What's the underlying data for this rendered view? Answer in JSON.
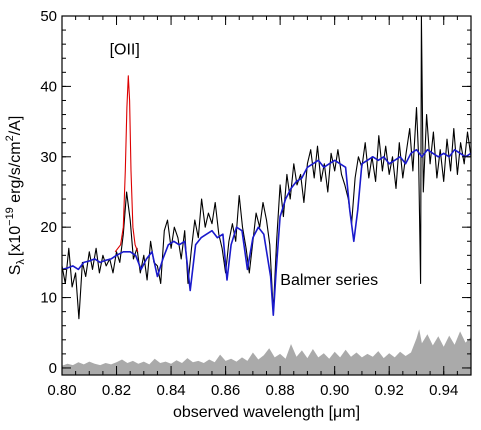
{
  "chart_data": {
    "type": "line",
    "title": "",
    "xlabel": "observed wavelength [μm]",
    "ylabel": {
      "main": "S",
      "sub": "λ",
      "unit_prefix": "[x10",
      "exp": "−19",
      "unit_mid": " erg/s/cm",
      "exp2": "2",
      "unit_suffix": "/A]"
    },
    "xlim": [
      0.8,
      0.95
    ],
    "ylim": [
      -1,
      50
    ],
    "xticks": [
      "0.80",
      "0.82",
      "0.84",
      "0.86",
      "0.88",
      "0.90",
      "0.92",
      "0.94"
    ],
    "xtick_values": [
      0.8,
      0.82,
      0.84,
      0.86,
      0.88,
      0.9,
      0.92,
      0.94
    ],
    "yticks": [
      "0",
      "10",
      "20",
      "30",
      "40",
      "50"
    ],
    "ytick_values": [
      0,
      10,
      20,
      30,
      40,
      50
    ],
    "grid": false,
    "annotations": [
      {
        "text": "[OII]",
        "x": 0.823,
        "y": 44.5
      },
      {
        "text": "Balmer series",
        "x": 0.898,
        "y": 11.8
      }
    ],
    "series": [
      {
        "color": "#000000",
        "style": "line",
        "points": [
          [
            0.8,
            14.5
          ],
          [
            0.8012,
            12.0
          ],
          [
            0.8025,
            17.0
          ],
          [
            0.8037,
            11.5
          ],
          [
            0.805,
            13.5
          ],
          [
            0.8062,
            7.0
          ],
          [
            0.8075,
            15.0
          ],
          [
            0.8087,
            13.0
          ],
          [
            0.81,
            16.5
          ],
          [
            0.8112,
            14.0
          ],
          [
            0.8125,
            17.0
          ],
          [
            0.8137,
            13.5
          ],
          [
            0.815,
            16.0
          ],
          [
            0.8162,
            14.5
          ],
          [
            0.8175,
            15.5
          ],
          [
            0.8187,
            13.5
          ],
          [
            0.82,
            16.5
          ],
          [
            0.8212,
            15.0
          ],
          [
            0.8225,
            19.0
          ],
          [
            0.8237,
            25.0
          ],
          [
            0.825,
            21.0
          ],
          [
            0.8262,
            15.5
          ],
          [
            0.8275,
            17.0
          ],
          [
            0.8287,
            13.5
          ],
          [
            0.83,
            16.0
          ],
          [
            0.8312,
            12.5
          ],
          [
            0.8325,
            18.0
          ],
          [
            0.8337,
            15.0
          ],
          [
            0.835,
            14.5
          ],
          [
            0.8362,
            12.0
          ],
          [
            0.8375,
            19.5
          ],
          [
            0.8387,
            21.0
          ],
          [
            0.84,
            17.0
          ],
          [
            0.8412,
            20.0
          ],
          [
            0.8425,
            18.5
          ],
          [
            0.8437,
            15.5
          ],
          [
            0.845,
            19.5
          ],
          [
            0.8462,
            12.0
          ],
          [
            0.8475,
            17.0
          ],
          [
            0.8487,
            21.0
          ],
          [
            0.85,
            18.5
          ],
          [
            0.8512,
            24.0
          ],
          [
            0.8525,
            20.0
          ],
          [
            0.8537,
            22.0
          ],
          [
            0.855,
            20.5
          ],
          [
            0.8562,
            23.5
          ],
          [
            0.8575,
            19.0
          ],
          [
            0.8587,
            17.0
          ],
          [
            0.86,
            13.5
          ],
          [
            0.8612,
            18.0
          ],
          [
            0.8625,
            20.5
          ],
          [
            0.8637,
            18.0
          ],
          [
            0.865,
            24.5
          ],
          [
            0.8662,
            20.0
          ],
          [
            0.8675,
            17.0
          ],
          [
            0.8687,
            13.5
          ],
          [
            0.87,
            18.0
          ],
          [
            0.8712,
            22.0
          ],
          [
            0.8725,
            20.0
          ],
          [
            0.8737,
            23.5
          ],
          [
            0.875,
            21.0
          ],
          [
            0.8762,
            17.5
          ],
          [
            0.8775,
            8.0
          ],
          [
            0.8787,
            18.0
          ],
          [
            0.88,
            26.0
          ],
          [
            0.8812,
            21.5
          ],
          [
            0.8825,
            27.5
          ],
          [
            0.8837,
            24.0
          ],
          [
            0.885,
            29.0
          ],
          [
            0.8862,
            26.0
          ],
          [
            0.8875,
            27.5
          ],
          [
            0.8887,
            23.5
          ],
          [
            0.89,
            29.0
          ],
          [
            0.8912,
            31.0
          ],
          [
            0.8925,
            27.0
          ],
          [
            0.8937,
            31.5
          ],
          [
            0.895,
            26.5
          ],
          [
            0.8962,
            29.0
          ],
          [
            0.8975,
            25.0
          ],
          [
            0.8987,
            30.5
          ],
          [
            0.9,
            28.0
          ],
          [
            0.9012,
            31.0
          ],
          [
            0.9025,
            27.5
          ],
          [
            0.9037,
            26.0
          ],
          [
            0.905,
            24.0
          ],
          [
            0.9062,
            20.5
          ],
          [
            0.9075,
            27.0
          ],
          [
            0.9087,
            30.0
          ],
          [
            0.91,
            28.5
          ],
          [
            0.9112,
            32.0
          ],
          [
            0.9125,
            27.0
          ],
          [
            0.9137,
            30.0
          ],
          [
            0.915,
            26.5
          ],
          [
            0.9162,
            33.0
          ],
          [
            0.9175,
            28.0
          ],
          [
            0.9187,
            31.5
          ],
          [
            0.92,
            27.5
          ],
          [
            0.9212,
            30.0
          ],
          [
            0.9225,
            25.5
          ],
          [
            0.9237,
            32.0
          ],
          [
            0.925,
            27.0
          ],
          [
            0.9262,
            30.5
          ],
          [
            0.9275,
            34.0
          ],
          [
            0.9287,
            28.0
          ],
          [
            0.93,
            37.0
          ],
          [
            0.9308,
            30.0
          ],
          [
            0.9315,
            12.0
          ],
          [
            0.9318,
            50.0
          ],
          [
            0.9325,
            25.0
          ],
          [
            0.9337,
            36.0
          ],
          [
            0.935,
            29.0
          ],
          [
            0.9362,
            33.5
          ],
          [
            0.9375,
            27.0
          ],
          [
            0.9387,
            31.0
          ],
          [
            0.94,
            26.5
          ],
          [
            0.9412,
            32.5
          ],
          [
            0.9425,
            28.0
          ],
          [
            0.9437,
            34.0
          ],
          [
            0.945,
            27.5
          ],
          [
            0.9462,
            32.0
          ],
          [
            0.9475,
            29.0
          ],
          [
            0.9487,
            33.5
          ],
          [
            0.95,
            30.0
          ]
        ]
      },
      {
        "color": "#dd0000",
        "style": "line",
        "points": [
          [
            0.8195,
            16.5
          ],
          [
            0.8205,
            17.0
          ],
          [
            0.8215,
            17.5
          ],
          [
            0.8225,
            20.0
          ],
          [
            0.8232,
            28.0
          ],
          [
            0.8238,
            37.0
          ],
          [
            0.8243,
            41.5
          ],
          [
            0.8248,
            38.0
          ],
          [
            0.8253,
            28.0
          ],
          [
            0.826,
            20.0
          ],
          [
            0.8268,
            17.5
          ],
          [
            0.8278,
            16.5
          ]
        ]
      },
      {
        "color": "#1a1acc",
        "style": "line",
        "points": [
          [
            0.8,
            14.0
          ],
          [
            0.802,
            14.2
          ],
          [
            0.804,
            14.5
          ],
          [
            0.806,
            14.0
          ],
          [
            0.808,
            15.0
          ],
          [
            0.81,
            15.2
          ],
          [
            0.812,
            15.5
          ],
          [
            0.814,
            15.0
          ],
          [
            0.816,
            15.3
          ],
          [
            0.818,
            15.5
          ],
          [
            0.82,
            16.0
          ],
          [
            0.8225,
            16.5
          ],
          [
            0.825,
            16.5
          ],
          [
            0.827,
            16.0
          ],
          [
            0.829,
            14.0
          ],
          [
            0.831,
            15.5
          ],
          [
            0.833,
            16.5
          ],
          [
            0.835,
            13.0
          ],
          [
            0.837,
            15.5
          ],
          [
            0.839,
            17.5
          ],
          [
            0.841,
            18.0
          ],
          [
            0.843,
            17.5
          ],
          [
            0.845,
            18.0
          ],
          [
            0.847,
            11.0
          ],
          [
            0.849,
            17.5
          ],
          [
            0.851,
            18.5
          ],
          [
            0.853,
            19.0
          ],
          [
            0.855,
            19.5
          ],
          [
            0.857,
            18.5
          ],
          [
            0.859,
            19.0
          ],
          [
            0.8605,
            12.5
          ],
          [
            0.862,
            17.5
          ],
          [
            0.864,
            20.0
          ],
          [
            0.866,
            19.5
          ],
          [
            0.868,
            14.0
          ],
          [
            0.87,
            18.5
          ],
          [
            0.872,
            20.0
          ],
          [
            0.874,
            19.0
          ],
          [
            0.8765,
            13.0
          ],
          [
            0.8775,
            7.5
          ],
          [
            0.8785,
            13.5
          ],
          [
            0.88,
            21.5
          ],
          [
            0.882,
            24.0
          ],
          [
            0.884,
            25.5
          ],
          [
            0.886,
            26.5
          ],
          [
            0.888,
            27.0
          ],
          [
            0.89,
            28.5
          ],
          [
            0.892,
            29.0
          ],
          [
            0.894,
            29.5
          ],
          [
            0.896,
            28.5
          ],
          [
            0.898,
            29.0
          ],
          [
            0.9,
            29.5
          ],
          [
            0.902,
            29.0
          ],
          [
            0.904,
            28.5
          ],
          [
            0.9055,
            22.5
          ],
          [
            0.907,
            18.0
          ],
          [
            0.9085,
            22.5
          ],
          [
            0.91,
            29.0
          ],
          [
            0.912,
            29.5
          ],
          [
            0.914,
            30.0
          ],
          [
            0.916,
            29.5
          ],
          [
            0.918,
            30.0
          ],
          [
            0.92,
            29.0
          ],
          [
            0.922,
            29.5
          ],
          [
            0.924,
            30.0
          ],
          [
            0.926,
            29.0
          ],
          [
            0.928,
            30.5
          ],
          [
            0.93,
            31.0
          ],
          [
            0.932,
            30.0
          ],
          [
            0.934,
            31.0
          ],
          [
            0.936,
            30.5
          ],
          [
            0.938,
            30.0
          ],
          [
            0.94,
            30.5
          ],
          [
            0.942,
            30.0
          ],
          [
            0.944,
            31.0
          ],
          [
            0.946,
            30.5
          ],
          [
            0.948,
            30.0
          ],
          [
            0.95,
            30.5
          ]
        ]
      },
      {
        "color": "#aaaaaa",
        "style": "area",
        "points": [
          [
            0.8,
            0.3
          ],
          [
            0.802,
            0.6
          ],
          [
            0.804,
            0.4
          ],
          [
            0.806,
            0.8
          ],
          [
            0.808,
            0.5
          ],
          [
            0.81,
            0.9
          ],
          [
            0.812,
            0.6
          ],
          [
            0.814,
            0.4
          ],
          [
            0.816,
            0.7
          ],
          [
            0.818,
            0.5
          ],
          [
            0.82,
            0.8
          ],
          [
            0.822,
            1.2
          ],
          [
            0.824,
            0.7
          ],
          [
            0.826,
            1.0
          ],
          [
            0.828,
            0.6
          ],
          [
            0.83,
            0.9
          ],
          [
            0.832,
            0.5
          ],
          [
            0.834,
            1.3
          ],
          [
            0.836,
            0.7
          ],
          [
            0.838,
            0.9
          ],
          [
            0.84,
            0.6
          ],
          [
            0.842,
            1.1
          ],
          [
            0.844,
            0.7
          ],
          [
            0.846,
            1.4
          ],
          [
            0.848,
            0.8
          ],
          [
            0.85,
            1.0
          ],
          [
            0.852,
            0.7
          ],
          [
            0.854,
            1.2
          ],
          [
            0.856,
            0.8
          ],
          [
            0.858,
            1.9
          ],
          [
            0.86,
            1.0
          ],
          [
            0.862,
            1.3
          ],
          [
            0.864,
            0.9
          ],
          [
            0.866,
            1.5
          ],
          [
            0.868,
            1.0
          ],
          [
            0.87,
            2.2
          ],
          [
            0.872,
            1.2
          ],
          [
            0.874,
            1.8
          ],
          [
            0.876,
            2.8
          ],
          [
            0.878,
            1.5
          ],
          [
            0.88,
            2.0
          ],
          [
            0.882,
            1.3
          ],
          [
            0.884,
            3.4
          ],
          [
            0.886,
            1.6
          ],
          [
            0.888,
            2.5
          ],
          [
            0.89,
            1.4
          ],
          [
            0.892,
            2.7
          ],
          [
            0.894,
            1.5
          ],
          [
            0.896,
            2.1
          ],
          [
            0.898,
            1.3
          ],
          [
            0.9,
            2.3
          ],
          [
            0.902,
            1.5
          ],
          [
            0.904,
            2.6
          ],
          [
            0.906,
            1.6
          ],
          [
            0.908,
            2.2
          ],
          [
            0.91,
            1.5
          ],
          [
            0.912,
            2.0
          ],
          [
            0.914,
            1.6
          ],
          [
            0.916,
            2.4
          ],
          [
            0.918,
            1.4
          ],
          [
            0.92,
            2.1
          ],
          [
            0.922,
            1.5
          ],
          [
            0.924,
            2.3
          ],
          [
            0.926,
            1.7
          ],
          [
            0.928,
            2.2
          ],
          [
            0.93,
            4.2
          ],
          [
            0.931,
            5.5
          ],
          [
            0.932,
            3.5
          ],
          [
            0.934,
            4.8
          ],
          [
            0.936,
            3.2
          ],
          [
            0.938,
            4.5
          ],
          [
            0.94,
            3.0
          ],
          [
            0.942,
            4.6
          ],
          [
            0.944,
            3.3
          ],
          [
            0.946,
            5.2
          ],
          [
            0.948,
            3.6
          ],
          [
            0.95,
            4.4
          ]
        ]
      }
    ]
  }
}
